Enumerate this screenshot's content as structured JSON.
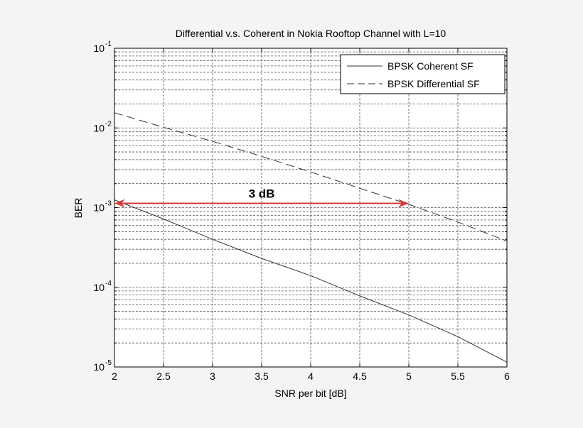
{
  "colors": {
    "background": "#f4f4f4",
    "plot_area": "#ffffff",
    "axes": "#000000",
    "grid": "#555555",
    "series": "#333333",
    "annotation_arrow": "#d63a3a"
  },
  "chart_data": {
    "type": "line",
    "title": "Differential v.s. Coherent in Nokia Rooftop Channel with L=10",
    "xlabel": "SNR per bit [dB]",
    "ylabel": "BER",
    "xlim": [
      2,
      6
    ],
    "ylim": [
      1e-05,
      0.1
    ],
    "yscale": "log",
    "grid": true,
    "minor_grid": true,
    "x_ticks": [
      2,
      2.5,
      3,
      3.5,
      4,
      4.5,
      5,
      5.5,
      6
    ],
    "x_tick_labels": [
      "2",
      "2.5",
      "3",
      "3.5",
      "4",
      "4.5",
      "5",
      "5.5",
      "6"
    ],
    "y_ticks": [
      {
        "value": 1e-05,
        "base": "10",
        "exp": "-5"
      },
      {
        "value": 0.0001,
        "base": "10",
        "exp": "-4"
      },
      {
        "value": 0.001,
        "base": "10",
        "exp": "-3"
      },
      {
        "value": 0.01,
        "base": "10",
        "exp": "-2"
      },
      {
        "value": 0.1,
        "base": "10",
        "exp": "-1"
      }
    ],
    "legend_position": "top-right",
    "series": [
      {
        "name": "BPSK Coherent SF",
        "style": "solid",
        "x": [
          2,
          2.5,
          3,
          3.5,
          4,
          4.5,
          5,
          5.5,
          6
        ],
        "y": [
          0.00125,
          0.00072,
          0.0004,
          0.00023,
          0.00014,
          7.8e-05,
          4.5e-05,
          2.4e-05,
          1.15e-05
        ]
      },
      {
        "name": "BPSK Differential SF",
        "style": "dashed",
        "x": [
          2,
          2.5,
          3,
          3.5,
          4,
          4.5,
          5,
          5.5,
          6
        ],
        "y": [
          0.0155,
          0.0102,
          0.0068,
          0.0044,
          0.0028,
          0.00175,
          0.0011,
          0.00066,
          0.00038
        ]
      }
    ],
    "annotation": {
      "label": "3 dB",
      "x_start": 2,
      "x_end": 5,
      "y": 0.00113
    }
  }
}
